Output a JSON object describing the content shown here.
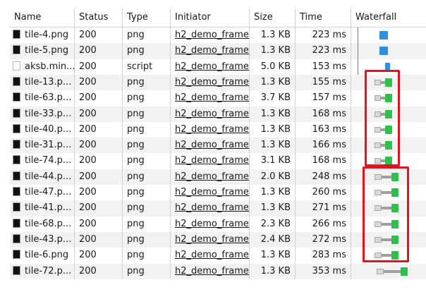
{
  "columns": {
    "name": "Name",
    "status": "Status",
    "type": "Type",
    "initiator": "Initiator",
    "size": "Size",
    "time": "Time",
    "waterfall": "Waterfall"
  },
  "rows": [
    {
      "name": "tile-4.png",
      "status": "200",
      "type": "png",
      "initiator": "h2_demo_frame...",
      "size": "1.3 KB",
      "time": "223 ms",
      "icon": "image-file-icon"
    },
    {
      "name": "tile-5.png",
      "status": "200",
      "type": "png",
      "initiator": "h2_demo_frame...",
      "size": "1.3 KB",
      "time": "223 ms",
      "icon": "image-file-icon"
    },
    {
      "name": "aksb.min...",
      "status": "200",
      "type": "script",
      "initiator": "h2_demo_frame...",
      "size": "5.0 KB",
      "time": "153 ms",
      "icon": "script-file-icon"
    },
    {
      "name": "tile-13.p...",
      "status": "200",
      "type": "png",
      "initiator": "h2_demo_frame...",
      "size": "1.3 KB",
      "time": "155 ms",
      "icon": "image-file-icon"
    },
    {
      "name": "tile-63.p...",
      "status": "200",
      "type": "png",
      "initiator": "h2_demo_frame...",
      "size": "3.7 KB",
      "time": "157 ms",
      "icon": "image-file-icon"
    },
    {
      "name": "tile-33.p...",
      "status": "200",
      "type": "png",
      "initiator": "h2_demo_frame...",
      "size": "1.3 KB",
      "time": "168 ms",
      "icon": "image-file-icon"
    },
    {
      "name": "tile-40.p...",
      "status": "200",
      "type": "png",
      "initiator": "h2_demo_frame...",
      "size": "1.3 KB",
      "time": "163 ms",
      "icon": "image-file-icon"
    },
    {
      "name": "tile-31.p...",
      "status": "200",
      "type": "png",
      "initiator": "h2_demo_frame...",
      "size": "1.3 KB",
      "time": "166 ms",
      "icon": "image-file-icon"
    },
    {
      "name": "tile-74.p...",
      "status": "200",
      "type": "png",
      "initiator": "h2_demo_frame...",
      "size": "3.1 KB",
      "time": "168 ms",
      "icon": "image-file-icon"
    },
    {
      "name": "tile-44.p...",
      "status": "200",
      "type": "png",
      "initiator": "h2_demo_frame...",
      "size": "2.0 KB",
      "time": "248 ms",
      "icon": "image-file-icon"
    },
    {
      "name": "tile-47.p...",
      "status": "200",
      "type": "png",
      "initiator": "h2_demo_frame...",
      "size": "1.3 KB",
      "time": "260 ms",
      "icon": "image-file-icon"
    },
    {
      "name": "tile-41.p...",
      "status": "200",
      "type": "png",
      "initiator": "h2_demo_frame...",
      "size": "1.3 KB",
      "time": "271 ms",
      "icon": "image-file-icon"
    },
    {
      "name": "tile-68.p...",
      "status": "200",
      "type": "png",
      "initiator": "h2_demo_frame...",
      "size": "2.3 KB",
      "time": "266 ms",
      "icon": "image-file-icon"
    },
    {
      "name": "tile-43.p...",
      "status": "200",
      "type": "png",
      "initiator": "h2_demo_frame...",
      "size": "2.4 KB",
      "time": "272 ms",
      "icon": "image-file-icon"
    },
    {
      "name": "tile-6.png",
      "status": "200",
      "type": "png",
      "initiator": "h2_demo_frame...",
      "size": "1.3 KB",
      "time": "283 ms",
      "icon": "image-file-icon"
    },
    {
      "name": "tile-72.p...",
      "status": "200",
      "type": "png",
      "initiator": "h2_demo_frame...",
      "size": "1.3 KB",
      "time": "353 ms",
      "icon": "image-file-icon"
    }
  ],
  "colors": {
    "waiting": "#d8d8d8",
    "stalled": "#9e9e9e",
    "download_green": "#2fbf4a",
    "download_blue": "#2f8fe0",
    "highlight_red": "#e2131e"
  }
}
